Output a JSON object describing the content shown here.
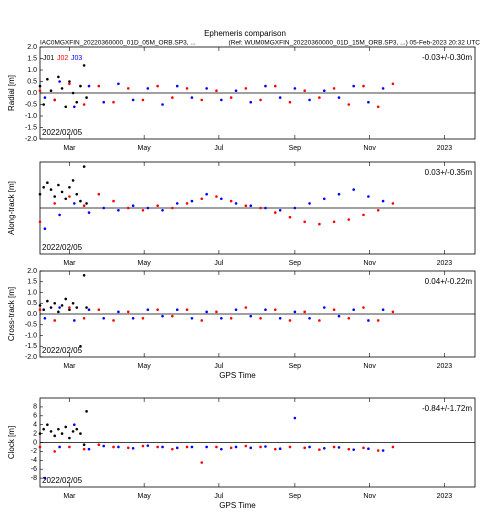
{
  "header": {
    "title": "Ephemeris comparison",
    "left": "IAC0MGXFIN_20220360000_01D_05M_ORB.SP3, ...",
    "right": "(Ref: WUM0MGXFIN_20220360000_01D_15M_ORB.SP3, ...) 05-Feb-2023 20:32 UTC"
  },
  "chart_data": [
    {
      "type": "scatter",
      "ylabel": "Radial [m]",
      "annotation": "-0.03+/-0.30m",
      "date_label": "2022/02/05",
      "legend": "upper left",
      "xlim": [
        0,
        355
      ],
      "xticks": [
        {
          "value": 24,
          "label": "Mar"
        },
        {
          "value": 85,
          "label": "May"
        },
        {
          "value": 146,
          "label": "Jul"
        },
        {
          "value": 208,
          "label": "Sep"
        },
        {
          "value": 269,
          "label": "Nov"
        },
        {
          "value": 330,
          "label": "2023"
        }
      ],
      "ylim": [
        -2,
        2
      ],
      "yticks": [
        {
          "value": 2,
          "label": "2.0"
        },
        1.5,
        {
          "value": 1,
          "label": "1.0"
        },
        0.5,
        {
          "value": 0,
          "label": "0.0"
        },
        -0.5,
        {
          "value": -1,
          "label": "-1.0"
        },
        -1.5,
        {
          "value": -2,
          "label": "-2.0"
        }
      ],
      "series": [
        {
          "name": "J01",
          "color": "#000000",
          "x": [
            0,
            3,
            6,
            9,
            12,
            15,
            18,
            21,
            24,
            27,
            30,
            33,
            36,
            38
          ],
          "values": [
            0.3,
            -0.5,
            0.6,
            0.1,
            -0.3,
            0.7,
            0.2,
            -0.6,
            0.5,
            0.0,
            -0.4,
            0.3,
            1.2,
            -0.2
          ]
        },
        {
          "name": "J02",
          "color": "#ff0000",
          "x": [
            0,
            12,
            24,
            36,
            48,
            60,
            72,
            84,
            96,
            108,
            120,
            132,
            144,
            156,
            168,
            180,
            192,
            204,
            216,
            228,
            240,
            252,
            264,
            276,
            288
          ],
          "values": [
            0.1,
            -0.3,
            0.4,
            -0.5,
            0.3,
            -0.4,
            0.2,
            -0.3,
            0.3,
            -0.2,
            0.2,
            -0.3,
            0.1,
            -0.2,
            0.2,
            -0.3,
            0.3,
            -0.4,
            0.1,
            -0.2,
            0.2,
            -0.5,
            0.3,
            -0.6,
            0.4
          ]
        },
        {
          "name": "J03",
          "color": "#0000ff",
          "x": [
            4,
            16,
            28,
            40,
            52,
            64,
            76,
            88,
            100,
            112,
            124,
            136,
            148,
            160,
            172,
            184,
            196,
            208,
            220,
            232,
            244,
            256,
            268,
            280
          ],
          "values": [
            -0.2,
            0.5,
            -0.6,
            0.3,
            -0.4,
            0.4,
            -0.3,
            0.2,
            -0.5,
            0.3,
            -0.2,
            0.2,
            -0.3,
            0.1,
            -0.4,
            0.3,
            -0.2,
            0.2,
            -0.3,
            0.1,
            -0.2,
            0.3,
            -0.4,
            0.2
          ]
        }
      ]
    },
    {
      "type": "scatter",
      "ylabel": "Along-track [m]",
      "annotation": "0.03+/-0.35m",
      "date_label": "2022/02/05",
      "xlim": [
        0,
        355
      ],
      "xticks": [
        {
          "value": 24,
          "label": "Mar"
        },
        {
          "value": 85,
          "label": "May"
        },
        {
          "value": 146,
          "label": "Jul"
        },
        {
          "value": 208,
          "label": "Sep"
        },
        {
          "value": 269,
          "label": "Nov"
        },
        {
          "value": 330,
          "label": "2023"
        }
      ],
      "ylim": [
        -2,
        2
      ],
      "series": [
        {
          "color": "#000000",
          "x": [
            0,
            3,
            6,
            9,
            12,
            15,
            18,
            21,
            24,
            27,
            30,
            33,
            36,
            38
          ],
          "values": [
            0.6,
            0.9,
            1.1,
            0.8,
            0.5,
            1.0,
            0.7,
            0.4,
            0.9,
            1.2,
            0.6,
            0.3,
            1.8,
            0.2
          ]
        },
        {
          "color": "#ff0000",
          "x": [
            0,
            12,
            24,
            36,
            48,
            60,
            72,
            84,
            96,
            108,
            120,
            132,
            144,
            156,
            168,
            180,
            192,
            204,
            216,
            228,
            240,
            252,
            264,
            276,
            288
          ],
          "values": [
            -0.6,
            0.2,
            0.5,
            0.1,
            0.6,
            0.3,
            0.0,
            -0.1,
            0.1,
            0.0,
            0.2,
            0.4,
            0.5,
            0.3,
            0.1,
            0.0,
            -0.2,
            -0.4,
            -0.6,
            -0.7,
            -0.6,
            -0.5,
            -0.3,
            -0.1,
            0.2
          ]
        },
        {
          "color": "#0000ff",
          "x": [
            4,
            16,
            28,
            40,
            52,
            64,
            76,
            88,
            100,
            112,
            124,
            136,
            148,
            160,
            172,
            184,
            196,
            208,
            220,
            232,
            244,
            256,
            268,
            280
          ],
          "values": [
            -0.9,
            -0.3,
            0.2,
            -0.2,
            0.0,
            -0.1,
            0.1,
            0.0,
            -0.1,
            0.2,
            0.3,
            0.6,
            0.4,
            0.2,
            0.1,
            0.0,
            -0.1,
            0.0,
            0.2,
            0.4,
            0.6,
            0.8,
            0.5,
            0.3
          ]
        }
      ]
    },
    {
      "type": "scatter",
      "ylabel": "Cross-track [m]",
      "xlabel": "GPS Time",
      "annotation": "0.04+/-0.22m",
      "date_label": "2022/02/05",
      "xlim": [
        0,
        355
      ],
      "xticks": [
        {
          "value": 24,
          "label": "Mar"
        },
        {
          "value": 85,
          "label": "May"
        },
        {
          "value": 146,
          "label": "Jul"
        },
        {
          "value": 208,
          "label": "Sep"
        },
        {
          "value": 269,
          "label": "Nov"
        },
        {
          "value": 330,
          "label": "2023"
        }
      ],
      "ylim": [
        -2,
        2
      ],
      "yticks": [
        {
          "value": 2,
          "label": "2.0"
        },
        1.5,
        {
          "value": 1,
          "label": "1.0"
        },
        0.5,
        {
          "value": 0,
          "label": "0.0"
        },
        -0.5,
        {
          "value": -1,
          "label": "-1.0"
        },
        -1.5,
        {
          "value": -2,
          "label": "-2.0"
        }
      ],
      "series": [
        {
          "color": "#000000",
          "x": [
            0,
            3,
            6,
            9,
            12,
            15,
            18,
            21,
            24,
            27,
            30,
            33,
            36,
            38
          ],
          "values": [
            0.4,
            0.2,
            0.6,
            0.3,
            0.5,
            0.1,
            0.4,
            0.7,
            0.2,
            0.5,
            0.3,
            -1.5,
            1.8,
            0.3
          ]
        },
        {
          "color": "#ff0000",
          "x": [
            0,
            12,
            24,
            36,
            48,
            60,
            72,
            84,
            96,
            108,
            120,
            132,
            144,
            156,
            168,
            180,
            192,
            204,
            216,
            228,
            240,
            252,
            264,
            276,
            288
          ],
          "values": [
            0.2,
            -0.3,
            0.3,
            -0.2,
            0.2,
            -0.3,
            0.1,
            -0.2,
            0.2,
            -0.1,
            0.2,
            -0.3,
            0.1,
            -0.2,
            0.3,
            -0.2,
            0.2,
            -0.3,
            0.1,
            -0.3,
            0.2,
            -0.2,
            0.3,
            -0.3,
            0.1
          ]
        },
        {
          "color": "#0000ff",
          "x": [
            4,
            16,
            28,
            40,
            52,
            64,
            76,
            88,
            100,
            112,
            124,
            136,
            148,
            160,
            172,
            184,
            196,
            208,
            220,
            232,
            244,
            256,
            268,
            280
          ],
          "values": [
            -0.2,
            0.3,
            -0.3,
            0.2,
            -0.2,
            0.1,
            -0.2,
            0.2,
            -0.1,
            0.2,
            -0.2,
            0.1,
            -0.2,
            0.2,
            -0.1,
            0.2,
            -0.2,
            0.1,
            -0.2,
            0.3,
            -0.1,
            0.2,
            -0.3,
            0.2
          ]
        }
      ]
    },
    {
      "type": "scatter",
      "ylabel": "Clock [m]",
      "xlabel": "GPS Time",
      "annotation": "-0.84+/-1.72m",
      "date_label": "2022/02/05",
      "xlim": [
        0,
        355
      ],
      "xticks": [
        {
          "value": 24,
          "label": "Mar"
        },
        {
          "value": 85,
          "label": "May"
        },
        {
          "value": 146,
          "label": "Jul"
        },
        {
          "value": 208,
          "label": "Sep"
        },
        {
          "value": 269,
          "label": "Nov"
        },
        {
          "value": 330,
          "label": "2023"
        }
      ],
      "ylim": [
        -10,
        10
      ],
      "yticks": [
        8,
        6,
        4,
        2,
        0,
        -2,
        -4,
        -6,
        -8
      ],
      "series": [
        {
          "color": "#000000",
          "x": [
            0,
            3,
            6,
            9,
            12,
            15,
            18,
            21,
            24,
            27,
            30,
            33,
            36,
            38
          ],
          "values": [
            2,
            3,
            4,
            2.5,
            1.5,
            3,
            2,
            3.5,
            1,
            2.5,
            3,
            2,
            -0.5,
            7
          ]
        },
        {
          "color": "#ff0000",
          "x": [
            0,
            12,
            24,
            36,
            48,
            60,
            72,
            84,
            96,
            108,
            120,
            132,
            144,
            156,
            168,
            180,
            192,
            204,
            216,
            228,
            240,
            252,
            264,
            276,
            288
          ],
          "values": [
            -1,
            -2,
            -1,
            -1.5,
            -0.5,
            -1,
            -1.2,
            -0.8,
            -1,
            -1.5,
            -1,
            -4.5,
            -1,
            -1.2,
            -0.8,
            -1,
            -1.5,
            -1,
            -1.2,
            -1.6,
            -1,
            -1.5,
            -1.2,
            -1.8,
            -1
          ]
        },
        {
          "color": "#0000ff",
          "x": [
            4,
            16,
            28,
            40,
            52,
            64,
            76,
            88,
            100,
            112,
            124,
            136,
            148,
            160,
            172,
            184,
            196,
            208,
            220,
            232,
            244,
            256,
            268,
            280
          ],
          "values": [
            -8,
            -1,
            4,
            -1.5,
            -0.8,
            -1,
            -1.3,
            -0.7,
            -1,
            -1.2,
            -1,
            -1,
            -1.5,
            -1,
            -1.2,
            -0.9,
            -1.4,
            5.5,
            -1,
            -1.3,
            -1.1,
            -1.6,
            -1.4,
            -1.8
          ]
        }
      ]
    }
  ]
}
